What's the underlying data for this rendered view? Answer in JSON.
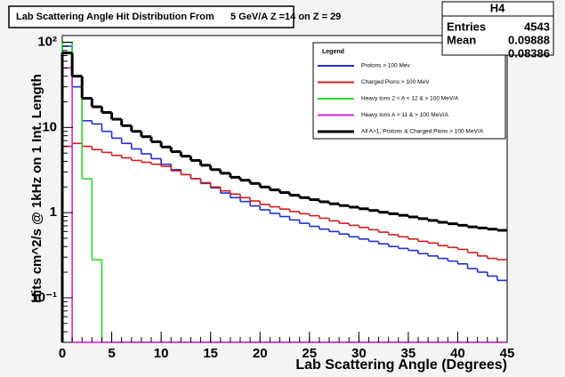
{
  "chart_data": {
    "type": "histogram",
    "title": "Lab Scattering Angle Hit Distribution From      5 GeV/A Z =14 on Z = 29",
    "x_label": "Lab Scattering Angle (Degrees)",
    "y_label": "Hits cm^2/s @ 1kHz on 1 Int. Length",
    "log_y": true,
    "bins": [
      0,
      1,
      2,
      3,
      4,
      5,
      6,
      7,
      8,
      9,
      10,
      11,
      12,
      13,
      14,
      15,
      16,
      17,
      18,
      19,
      20,
      21,
      22,
      23,
      24,
      25,
      26,
      27,
      28,
      29,
      30,
      31,
      32,
      33,
      34,
      35,
      36,
      37,
      38,
      39,
      40,
      41,
      42,
      43,
      44,
      45
    ],
    "xlim": [
      0,
      45
    ],
    "xticks": [
      0,
      5,
      10,
      15,
      20,
      25,
      30,
      35,
      40,
      45
    ],
    "ylim": [
      0.03,
      120
    ],
    "yticks": [
      {
        "value": 0.1,
        "label": "10⁻¹"
      },
      1,
      10,
      {
        "value": 100,
        "label": "10²"
      }
    ],
    "legend": {
      "title": "Legend",
      "position": "upper right"
    },
    "stats": {
      "name": "H4",
      "rows": [
        [
          "Entries",
          "4543"
        ],
        [
          "Mean",
          "0.09888"
        ],
        [
          null,
          "0.08386"
        ]
      ]
    },
    "series": [
      {
        "name": "Protons > 100 Mev",
        "color": "#1f2fd0",
        "values": [
          90,
          30,
          12,
          11,
          9,
          7.5,
          6.5,
          5.6,
          4.9,
          4.3,
          3.7,
          3.2,
          2.8,
          2.5,
          2.2,
          1.95,
          1.7,
          1.5,
          1.35,
          1.2,
          1.08,
          0.98,
          0.9,
          0.82,
          0.75,
          0.69,
          0.64,
          0.6,
          0.56,
          0.52,
          0.49,
          0.46,
          0.43,
          0.4,
          0.38,
          0.36,
          0.33,
          0.31,
          0.29,
          0.27,
          0.25,
          0.22,
          0.2,
          0.18,
          0.16
        ]
      },
      {
        "name": "Charged Pions > 100 MeV",
        "color": "#d41c1c",
        "values": [
          6,
          6.5,
          6,
          5.5,
          5.1,
          4.7,
          4.4,
          4.1,
          3.9,
          3.7,
          3.5,
          3.1,
          2.8,
          2.5,
          2.25,
          2.0,
          1.8,
          1.65,
          1.5,
          1.37,
          1.25,
          1.17,
          1.1,
          1.03,
          0.97,
          0.92,
          0.86,
          0.8,
          0.75,
          0.71,
          0.67,
          0.63,
          0.59,
          0.55,
          0.52,
          0.49,
          0.46,
          0.44,
          0.41,
          0.39,
          0.37,
          0.34,
          0.31,
          0.29,
          0.28
        ]
      },
      {
        "name": "Heavy Ions 2 < A < 12 & > 100 MeV/A",
        "color": "#22dd22",
        "values": [
          100,
          40,
          2.5,
          0.28,
          0,
          0,
          0,
          0,
          0,
          0,
          0,
          0,
          0,
          0,
          0,
          0,
          0,
          0,
          0,
          0,
          0,
          0,
          0,
          0,
          0,
          0,
          0,
          0,
          0,
          0,
          0,
          0,
          0,
          0,
          0,
          0,
          0,
          0,
          0,
          0,
          0,
          0,
          0,
          0,
          0
        ]
      },
      {
        "name": "Heavy Ions A > 11 & > 100 MeV/A",
        "color": "#dd22dd",
        "values": [
          50,
          0,
          0,
          0,
          0,
          0,
          0,
          0,
          0,
          0,
          0,
          0,
          0,
          0,
          0,
          0,
          0,
          0,
          0,
          0,
          0,
          0,
          0,
          0,
          0,
          0,
          0,
          0,
          0,
          0,
          0,
          0,
          0,
          0,
          0,
          0,
          0,
          0,
          0,
          0,
          0,
          0,
          0,
          0,
          0
        ]
      },
      {
        "name": "All A>1, Protons & Charged Pions > 100 MeV/A",
        "color": "#000000",
        "values": [
          75,
          40,
          22,
          17.5,
          15,
          12.5,
          10.5,
          9,
          7.8,
          6.8,
          5.9,
          5.2,
          4.6,
          4.1,
          3.6,
          3.2,
          2.9,
          2.6,
          2.4,
          2.2,
          2.0,
          1.85,
          1.72,
          1.6,
          1.5,
          1.42,
          1.34,
          1.27,
          1.21,
          1.16,
          1.11,
          1.06,
          1.01,
          0.97,
          0.93,
          0.89,
          0.85,
          0.81,
          0.77,
          0.74,
          0.71,
          0.68,
          0.66,
          0.64,
          0.62
        ]
      }
    ]
  }
}
